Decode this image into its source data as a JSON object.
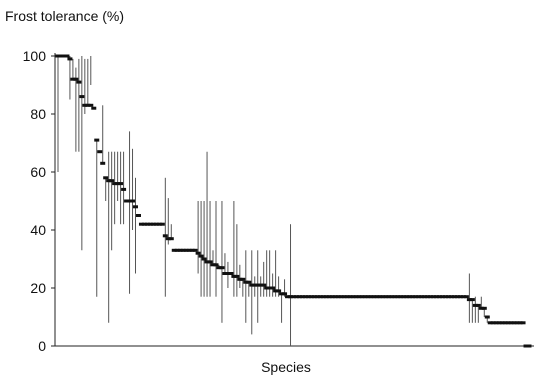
{
  "chart_data": {
    "type": "scatter",
    "title": "",
    "ylabel": "Frost tolerance (%)",
    "xlabel": "Species",
    "ylim": [
      0,
      100
    ],
    "yticks": [
      0,
      20,
      40,
      60,
      80,
      100
    ],
    "xticks": [],
    "grid": false,
    "legend": "none",
    "marker": "square",
    "error_bars": "vertical range",
    "x": [
      1,
      2,
      3,
      4,
      5,
      6,
      7,
      8,
      9,
      10,
      11,
      12,
      13,
      14,
      15,
      16,
      17,
      18,
      19,
      20,
      21,
      22,
      23,
      24,
      25,
      26,
      27,
      28,
      29,
      30,
      31,
      32,
      33,
      34,
      35,
      36,
      37,
      38,
      39,
      40,
      41,
      42,
      43,
      44,
      45,
      46,
      47,
      48,
      49,
      50,
      51,
      52,
      53,
      54,
      55,
      56,
      57,
      58,
      59,
      60,
      61,
      62,
      63,
      64,
      65,
      66,
      67,
      68,
      69,
      70,
      71,
      72,
      73,
      74,
      75,
      76,
      77,
      78,
      79,
      80,
      81,
      82,
      83,
      84,
      85,
      86,
      87,
      88,
      89,
      90,
      91,
      92,
      93,
      94,
      95,
      96,
      97,
      98,
      99,
      100,
      101,
      102,
      103,
      104,
      105,
      106,
      107,
      108,
      109,
      110,
      111,
      112,
      113,
      114,
      115,
      116,
      117,
      118,
      119,
      120,
      121,
      122,
      123,
      124,
      125,
      126,
      127,
      128,
      129,
      130,
      131,
      132,
      133,
      134,
      135,
      136,
      137,
      138,
      139,
      140,
      141,
      142,
      143,
      144,
      145,
      146,
      147,
      148,
      149,
      150,
      151,
      152,
      153,
      154,
      155,
      156,
      157,
      158,
      159
    ],
    "y": [
      100,
      100,
      100,
      100,
      99,
      92,
      92,
      91,
      86,
      83,
      83,
      83,
      82,
      71,
      67,
      63,
      58,
      57,
      57,
      56,
      56,
      56,
      54,
      50,
      50,
      50,
      48,
      45,
      42,
      42,
      42,
      42,
      42,
      42,
      42,
      42,
      38,
      37,
      37,
      33,
      33,
      33,
      33,
      33,
      33,
      33,
      33,
      32,
      31,
      30,
      29,
      29,
      28,
      28,
      27,
      27,
      25,
      25,
      25,
      24,
      24,
      23,
      23,
      22,
      22,
      21,
      21,
      21,
      21,
      21,
      20,
      20,
      20,
      19,
      19,
      18,
      18,
      17,
      17,
      17,
      17,
      17,
      17,
      17,
      17,
      17,
      17,
      17,
      17,
      17,
      17,
      17,
      17,
      17,
      17,
      17,
      17,
      17,
      17,
      17,
      17,
      17,
      17,
      17,
      17,
      17,
      17,
      17,
      17,
      17,
      17,
      17,
      17,
      17,
      17,
      17,
      17,
      17,
      17,
      17,
      17,
      17,
      17,
      17,
      17,
      17,
      17,
      17,
      17,
      17,
      17,
      17,
      17,
      17,
      17,
      17,
      17,
      17,
      16,
      16,
      14,
      14,
      13,
      13,
      10,
      8,
      8,
      8,
      8,
      8,
      8,
      8,
      8,
      8,
      8,
      8,
      8,
      0,
      0
    ],
    "error_high": [
      100,
      100,
      100,
      100,
      100,
      99,
      96,
      99,
      100,
      99,
      99,
      100,
      82,
      71,
      67,
      83,
      58,
      67,
      67,
      67,
      67,
      67,
      67,
      50,
      74,
      68,
      58,
      45,
      42,
      42,
      42,
      42,
      42,
      42,
      42,
      42,
      58,
      51,
      42,
      33,
      33,
      33,
      33,
      33,
      33,
      33,
      33,
      50,
      50,
      50,
      67,
      50,
      33,
      50,
      28,
      50,
      32,
      29,
      25,
      50,
      42,
      28,
      23,
      33,
      22,
      33,
      24,
      33,
      24,
      29,
      33,
      33,
      25,
      33,
      24,
      18,
      23,
      17,
      42,
      17,
      17,
      17,
      17,
      17,
      17,
      17,
      17,
      17,
      17,
      17,
      17,
      17,
      17,
      17,
      17,
      17,
      17,
      17,
      17,
      17,
      17,
      17,
      17,
      17,
      17,
      17,
      17,
      17,
      17,
      17,
      17,
      17,
      17,
      17,
      17,
      17,
      17,
      17,
      17,
      17,
      17,
      17,
      17,
      17,
      17,
      17,
      17,
      17,
      17,
      17,
      17,
      17,
      17,
      17,
      17,
      17,
      17,
      17,
      25,
      16,
      17,
      14,
      17,
      13,
      10,
      8,
      8,
      8,
      8,
      8,
      8,
      8,
      8,
      8,
      8,
      8,
      8,
      0,
      0
    ],
    "error_low": [
      60,
      100,
      100,
      100,
      85,
      92,
      67,
      67,
      33,
      80,
      83,
      90,
      82,
      17,
      67,
      63,
      50,
      8,
      33,
      42,
      50,
      42,
      42,
      50,
      18,
      40,
      25,
      45,
      42,
      42,
      42,
      42,
      42,
      42,
      42,
      42,
      17,
      35,
      37,
      33,
      33,
      33,
      33,
      33,
      33,
      33,
      33,
      25,
      17,
      17,
      17,
      17,
      28,
      17,
      27,
      8,
      25,
      20,
      25,
      17,
      17,
      20,
      17,
      8,
      17,
      4,
      17,
      8,
      17,
      17,
      17,
      17,
      17,
      17,
      17,
      8,
      17,
      17,
      0,
      17,
      17,
      17,
      17,
      17,
      17,
      17,
      17,
      17,
      17,
      17,
      17,
      17,
      17,
      17,
      17,
      17,
      17,
      17,
      17,
      17,
      17,
      17,
      17,
      17,
      17,
      17,
      17,
      17,
      17,
      17,
      17,
      17,
      17,
      17,
      17,
      17,
      17,
      17,
      17,
      17,
      17,
      17,
      17,
      17,
      17,
      17,
      17,
      17,
      17,
      17,
      17,
      17,
      17,
      17,
      17,
      17,
      17,
      17,
      8,
      8,
      8,
      8,
      13,
      10,
      8,
      8,
      8,
      8,
      8,
      8,
      8,
      8,
      8,
      8,
      8,
      8,
      8,
      0,
      0
    ]
  },
  "colors": {
    "marker": "#111111",
    "error_bar": "#555555",
    "axis": "#222222",
    "background": "#ffffff"
  }
}
